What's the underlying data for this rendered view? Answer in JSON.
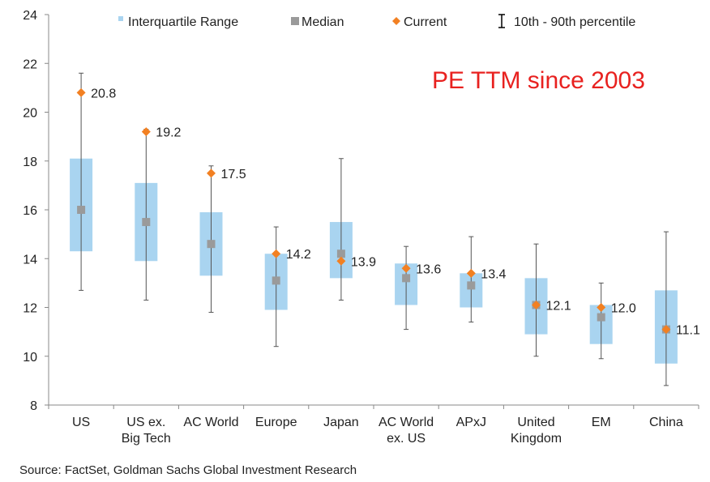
{
  "chart_data": {
    "type": "box",
    "annotation": "PE TTM since 2003",
    "source": "Source: FactSet, Goldman Sachs Global Investment Research",
    "ylim": [
      8,
      24
    ],
    "yticks": [
      8,
      10,
      12,
      14,
      16,
      18,
      20,
      22,
      24
    ],
    "grid": false,
    "legend_position": "top",
    "legend": [
      {
        "key": "iqr",
        "label": "Interquartile Range"
      },
      {
        "key": "median",
        "label": "Median"
      },
      {
        "key": "current",
        "label": "Current"
      },
      {
        "key": "range",
        "label": "10th - 90th percentile"
      }
    ],
    "colors": {
      "iqr": "#a9d4f0",
      "median": "#9a9a9a",
      "current": "#f28022",
      "whisker": "#555555",
      "annotation": "#e8211f"
    },
    "categories": [
      {
        "label": [
          "US"
        ],
        "p10": 12.7,
        "q1": 14.3,
        "median": 16.0,
        "q3": 18.1,
        "p90": 21.6,
        "current": 20.8,
        "current_label": "20.8"
      },
      {
        "label": [
          "US ex.",
          "Big Tech"
        ],
        "p10": 12.3,
        "q1": 13.9,
        "median": 15.5,
        "q3": 17.1,
        "p90": 19.3,
        "current": 19.2,
        "current_label": "19.2"
      },
      {
        "label": [
          "AC World"
        ],
        "p10": 11.8,
        "q1": 13.3,
        "median": 14.6,
        "q3": 15.9,
        "p90": 17.8,
        "current": 17.5,
        "current_label": "17.5"
      },
      {
        "label": [
          "Europe"
        ],
        "p10": 10.4,
        "q1": 11.9,
        "median": 13.1,
        "q3": 14.2,
        "p90": 15.3,
        "current": 14.2,
        "current_label": "14.2"
      },
      {
        "label": [
          "Japan"
        ],
        "p10": 12.3,
        "q1": 13.2,
        "median": 14.2,
        "q3": 15.5,
        "p90": 18.1,
        "current": 13.9,
        "current_label": "13.9"
      },
      {
        "label": [
          "AC World",
          "ex. US"
        ],
        "p10": 11.1,
        "q1": 12.1,
        "median": 13.2,
        "q3": 13.8,
        "p90": 14.5,
        "current": 13.6,
        "current_label": "13.6"
      },
      {
        "label": [
          "APxJ"
        ],
        "p10": 11.4,
        "q1": 12.0,
        "median": 12.9,
        "q3": 13.4,
        "p90": 14.9,
        "current": 13.4,
        "current_label": "13.4"
      },
      {
        "label": [
          "United",
          "Kingdom"
        ],
        "p10": 10.0,
        "q1": 10.9,
        "median": 12.1,
        "q3": 13.2,
        "p90": 14.6,
        "current": 12.1,
        "current_label": "12.1"
      },
      {
        "label": [
          "EM"
        ],
        "p10": 9.9,
        "q1": 10.5,
        "median": 11.6,
        "q3": 12.1,
        "p90": 13.0,
        "current": 12.0,
        "current_label": "12.0"
      },
      {
        "label": [
          "China"
        ],
        "p10": 8.8,
        "q1": 9.7,
        "median": 11.1,
        "q3": 12.7,
        "p90": 15.1,
        "current": 11.1,
        "current_label": "11.1"
      }
    ]
  }
}
